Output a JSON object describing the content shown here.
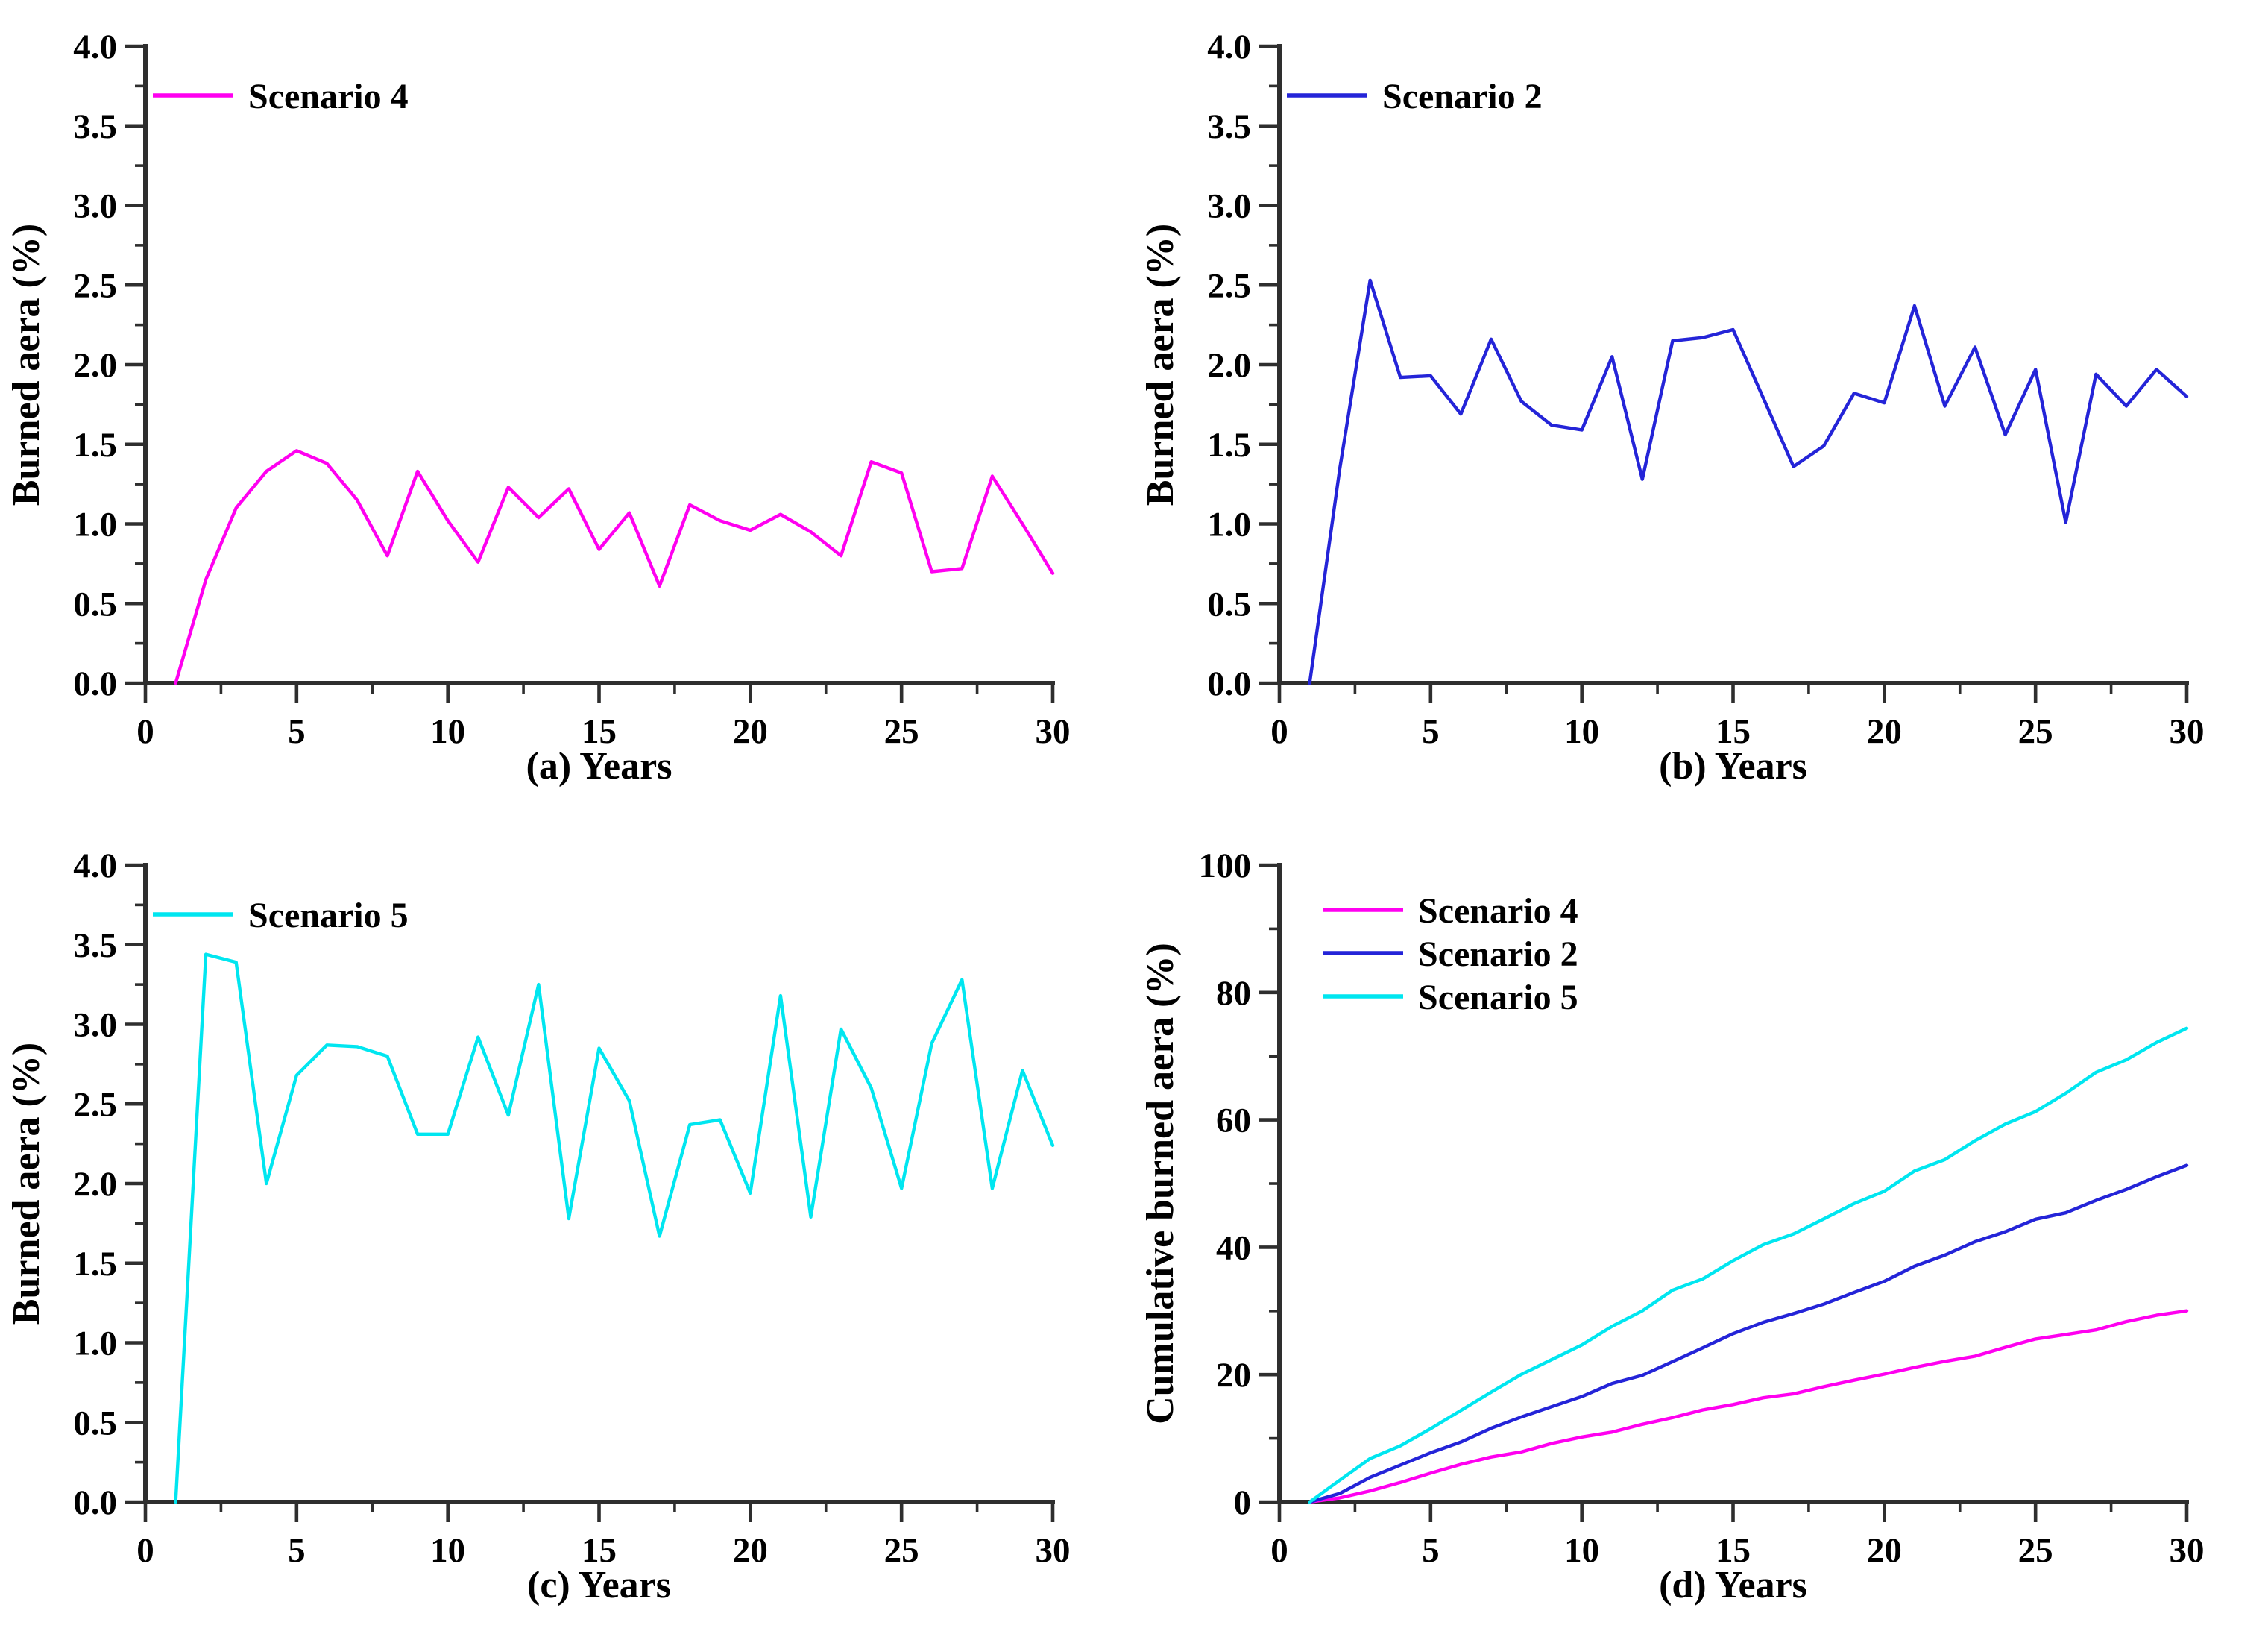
{
  "figure_title": "Burned area scenarios figure",
  "colors": {
    "scenario4": "#FF00F0",
    "scenario2": "#2424D8",
    "scenario5": "#00E6F0",
    "axis": "#2e2e2e",
    "text": "#000000",
    "background": "#ffffff"
  },
  "chart_data": [
    {
      "id": "a",
      "type": "line",
      "title": "",
      "xlabel": "(a) Years",
      "ylabel": "Burned aera (%)",
      "xlim": [
        0,
        30
      ],
      "ylim": [
        0,
        4
      ],
      "xticks": [
        0,
        5,
        10,
        15,
        20,
        25,
        30
      ],
      "ytick_step": 0.5,
      "y_decimals": 1,
      "x_minor_step": 2.5,
      "y_minor_step": 0.25,
      "grid": false,
      "legend_position": "top-left",
      "years": [
        1,
        2,
        3,
        4,
        5,
        6,
        7,
        8,
        9,
        10,
        11,
        12,
        13,
        14,
        15,
        16,
        17,
        18,
        19,
        20,
        21,
        22,
        23,
        24,
        25,
        26,
        27,
        28,
        29,
        30
      ],
      "series": [
        {
          "name": "Scenario 4",
          "color_key": "scenario4",
          "values": [
            0,
            0.65,
            1.1,
            1.33,
            1.46,
            1.38,
            1.15,
            0.8,
            1.33,
            1.02,
            0.76,
            1.23,
            1.04,
            1.22,
            0.84,
            1.07,
            0.61,
            1.12,
            1.02,
            0.96,
            1.06,
            0.95,
            0.8,
            1.39,
            1.32,
            0.7,
            0.72,
            1.3,
            1.0,
            0.69
          ]
        }
      ]
    },
    {
      "id": "b",
      "type": "line",
      "title": "",
      "xlabel": "(b) Years",
      "ylabel": "Burned aera (%)",
      "xlim": [
        0,
        30
      ],
      "ylim": [
        0,
        4
      ],
      "xticks": [
        0,
        5,
        10,
        15,
        20,
        25,
        30
      ],
      "ytick_step": 0.5,
      "y_decimals": 1,
      "x_minor_step": 2.5,
      "y_minor_step": 0.25,
      "grid": false,
      "legend_position": "top-left",
      "years": [
        1,
        2,
        3,
        4,
        5,
        6,
        7,
        8,
        9,
        10,
        11,
        12,
        13,
        14,
        15,
        16,
        17,
        18,
        19,
        20,
        21,
        22,
        23,
        24,
        25,
        26,
        27,
        28,
        29,
        30
      ],
      "series": [
        {
          "name": "Scenario 2",
          "color_key": "scenario2",
          "values": [
            0,
            1.35,
            2.53,
            1.92,
            1.93,
            1.69,
            2.16,
            1.77,
            1.62,
            1.59,
            2.05,
            1.28,
            2.15,
            2.17,
            2.22,
            1.79,
            1.36,
            1.49,
            1.82,
            1.76,
            2.37,
            1.74,
            2.11,
            1.56,
            1.97,
            1.01,
            1.94,
            1.74,
            1.97,
            1.8
          ]
        }
      ]
    },
    {
      "id": "c",
      "type": "line",
      "title": "",
      "xlabel": "(c) Years",
      "ylabel": "Burned aera (%)",
      "xlim": [
        0,
        30
      ],
      "ylim": [
        0,
        4
      ],
      "xticks": [
        0,
        5,
        10,
        15,
        20,
        25,
        30
      ],
      "ytick_step": 0.5,
      "y_decimals": 1,
      "x_minor_step": 2.5,
      "y_minor_step": 0.25,
      "grid": false,
      "legend_position": "top-left",
      "years": [
        1,
        2,
        3,
        4,
        5,
        6,
        7,
        8,
        9,
        10,
        11,
        12,
        13,
        14,
        15,
        16,
        17,
        18,
        19,
        20,
        21,
        22,
        23,
        24,
        25,
        26,
        27,
        28,
        29,
        30
      ],
      "series": [
        {
          "name": "Scenario 5",
          "color_key": "scenario5",
          "values": [
            0,
            3.44,
            3.39,
            2.0,
            2.68,
            2.87,
            2.86,
            2.8,
            2.31,
            2.31,
            2.92,
            2.43,
            3.25,
            1.78,
            2.85,
            2.52,
            1.67,
            2.37,
            2.4,
            1.94,
            3.18,
            1.79,
            2.97,
            2.6,
            1.97,
            2.88,
            3.28,
            1.97,
            2.71,
            2.24
          ]
        }
      ]
    },
    {
      "id": "d",
      "type": "line",
      "title": "",
      "xlabel": "(d) Years",
      "ylabel": "Cumulative burned aera (%)",
      "xlim": [
        0,
        30
      ],
      "ylim": [
        0,
        100
      ],
      "xticks": [
        0,
        5,
        10,
        15,
        20,
        25,
        30
      ],
      "ytick_step": 20,
      "y_decimals": 0,
      "x_minor_step": 2.5,
      "y_minor_step": 10,
      "grid": false,
      "legend_position": "top-left",
      "years": [
        1,
        2,
        3,
        4,
        5,
        6,
        7,
        8,
        9,
        10,
        11,
        12,
        13,
        14,
        15,
        16,
        17,
        18,
        19,
        20,
        21,
        22,
        23,
        24,
        25,
        26,
        27,
        28,
        29,
        30
      ],
      "series": [
        {
          "name": "Scenario 4",
          "color_key": "scenario4",
          "values": [
            0,
            0.65,
            1.75,
            3.07,
            4.53,
            5.91,
            7.06,
            7.86,
            9.19,
            10.21,
            10.97,
            12.2,
            13.24,
            14.46,
            15.3,
            16.37,
            16.98,
            18.1,
            19.12,
            20.08,
            21.14,
            22.09,
            22.89,
            24.28,
            25.6,
            26.3,
            27.02,
            28.32,
            29.32,
            30.01
          ]
        },
        {
          "name": "Scenario 2",
          "color_key": "scenario2",
          "values": [
            0,
            1.35,
            3.88,
            5.8,
            7.73,
            9.42,
            11.58,
            13.35,
            14.97,
            16.56,
            18.61,
            19.89,
            22.04,
            24.21,
            26.43,
            28.22,
            29.58,
            31.07,
            32.89,
            34.65,
            37.02,
            38.76,
            40.87,
            42.43,
            44.4,
            45.41,
            47.35,
            49.09,
            51.06,
            52.86
          ]
        },
        {
          "name": "Scenario 5",
          "color_key": "scenario5",
          "values": [
            0,
            3.44,
            6.83,
            8.83,
            11.51,
            14.38,
            17.24,
            20.04,
            22.35,
            24.66,
            27.58,
            30.01,
            33.26,
            35.04,
            37.89,
            40.41,
            42.08,
            44.45,
            46.85,
            48.79,
            51.97,
            53.76,
            56.73,
            59.33,
            61.3,
            64.18,
            67.46,
            69.43,
            72.14,
            74.38
          ]
        }
      ]
    }
  ]
}
